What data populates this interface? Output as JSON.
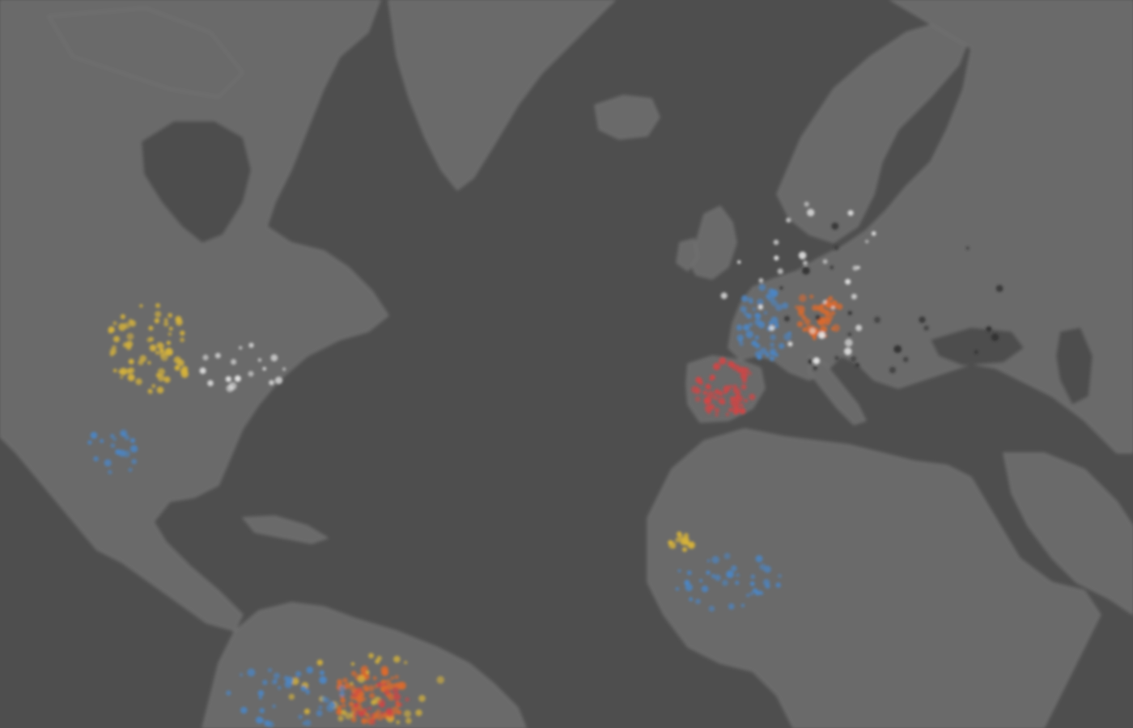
{
  "map": {
    "style": "dark-grey basemap",
    "colors": {
      "ocean": "#4e4e4e",
      "land": "#6b6b6b",
      "land_border": "#787878",
      "yellow": "#d7b33a",
      "red": "#d04545",
      "blue": "#4b86c6",
      "orange": "#de6a2b",
      "white": "#e8e8e8",
      "dark": "#2f2f2f"
    },
    "clusters": [
      {
        "name": "north-america-yellow-cluster",
        "color": "yellow",
        "count": 70,
        "seed": 11
      },
      {
        "name": "north-america-blue-cluster",
        "color": "blue",
        "count": 20,
        "seed": 12
      },
      {
        "name": "east-coast-white-cluster",
        "color": "white",
        "count": 18,
        "seed": 13
      },
      {
        "name": "iberia-red-cluster",
        "color": "red",
        "count": 60,
        "seed": 21
      },
      {
        "name": "france-blue-cluster",
        "color": "blue",
        "count": 55,
        "seed": 22
      },
      {
        "name": "central-europe-orange-cluster",
        "color": "orange",
        "count": 45,
        "seed": 23
      },
      {
        "name": "europe-white-cluster",
        "color": "white",
        "count": 30,
        "seed": 24
      },
      {
        "name": "europe-dark-cluster",
        "color": "dark",
        "count": 25,
        "seed": 25
      },
      {
        "name": "west-africa-yellow-cluster",
        "color": "yellow",
        "count": 14,
        "seed": 31
      },
      {
        "name": "west-africa-blue-cluster",
        "color": "blue",
        "count": 40,
        "seed": 32
      },
      {
        "name": "south-america-orange-cluster",
        "color": "orange",
        "count": 70,
        "seed": 41
      },
      {
        "name": "south-america-yellow-cluster",
        "color": "yellow",
        "count": 30,
        "seed": 42
      },
      {
        "name": "south-america-blue-cluster",
        "color": "blue",
        "count": 40,
        "seed": 43
      },
      {
        "name": "south-america-red-cluster",
        "color": "red",
        "count": 25,
        "seed": 44
      }
    ]
  }
}
